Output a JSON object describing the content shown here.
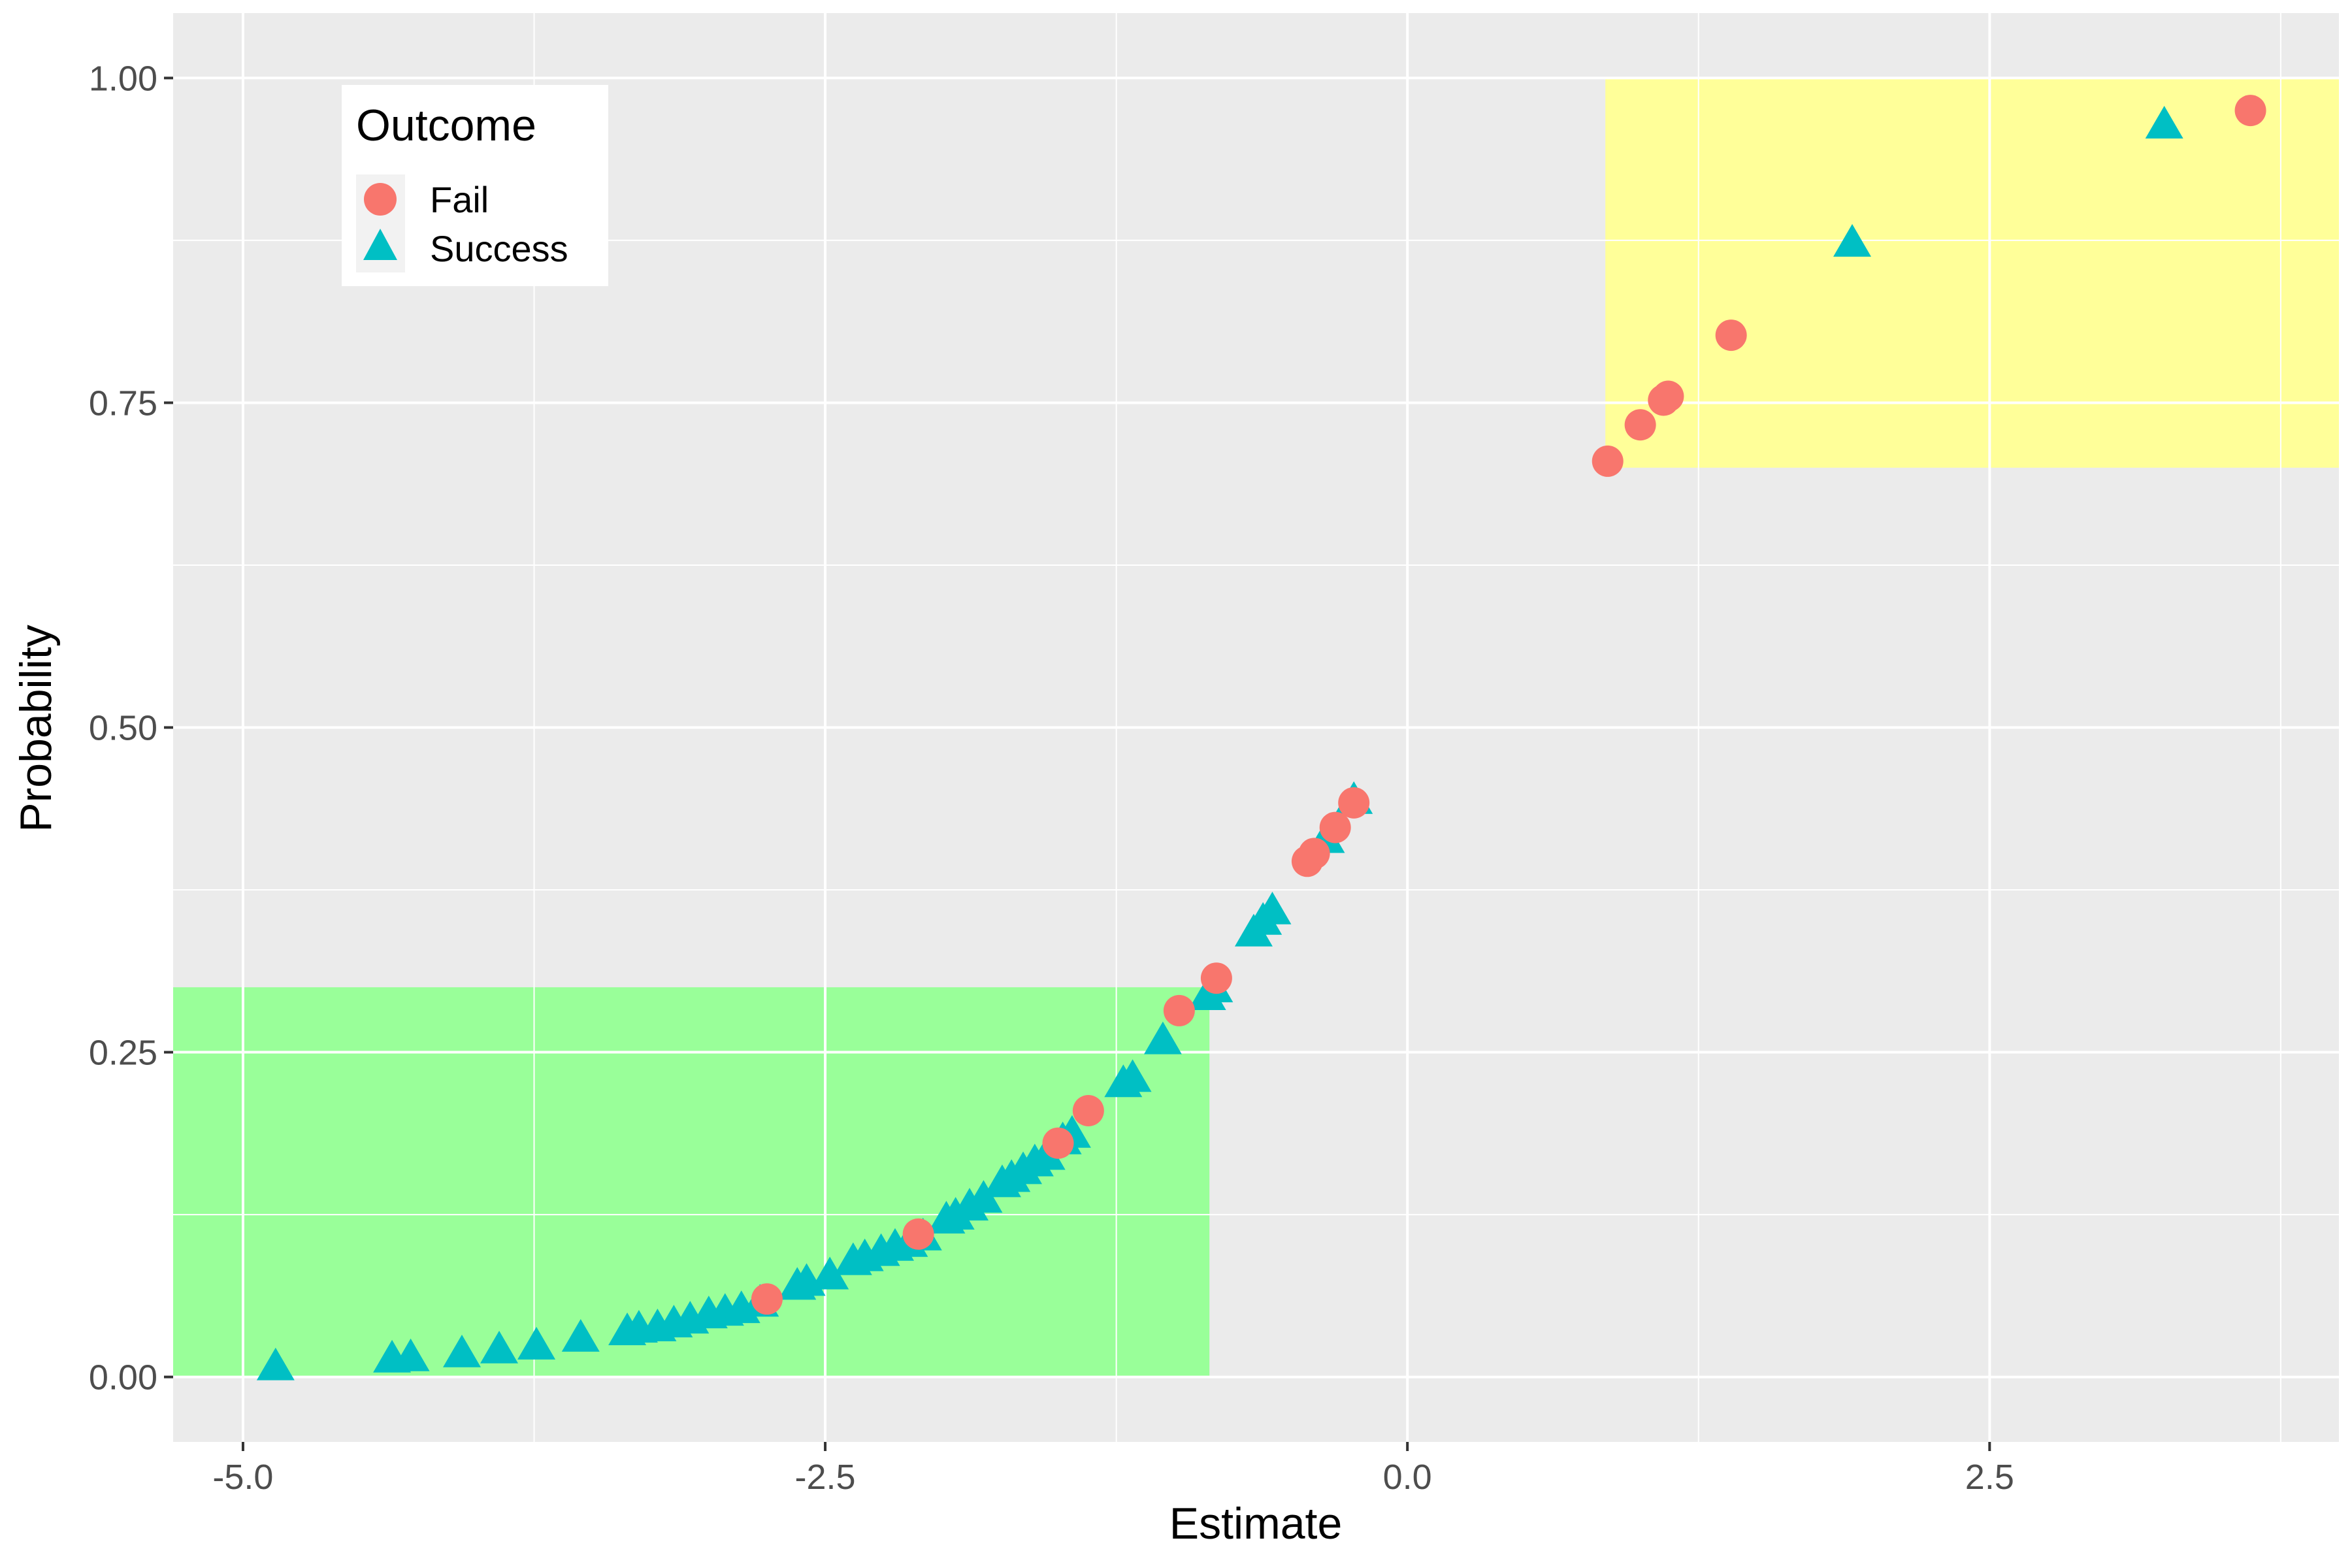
{
  "chart_data": {
    "type": "scatter",
    "xlabel": "Estimate",
    "ylabel": "Probability",
    "xlim": [
      -5.3,
      4.0
    ],
    "ylim": [
      -0.05,
      1.05
    ],
    "x_ticks": [
      -5.0,
      -2.5,
      0.0,
      2.5
    ],
    "x_tick_labels": [
      "-5.0",
      "-2.5",
      "0.0",
      "2.5"
    ],
    "y_ticks": [
      0.0,
      0.25,
      0.5,
      0.75,
      1.0
    ],
    "y_tick_labels": [
      "0.00",
      "0.25",
      "0.50",
      "0.75",
      "1.00"
    ],
    "grid": true,
    "legend": {
      "title": "Outcome",
      "position": "top-left",
      "entries": [
        "Fail",
        "Success"
      ]
    },
    "highlight_regions": [
      {
        "x": [
          -5.3,
          -0.85
        ],
        "y": [
          0.0,
          0.3
        ],
        "color": "#99FF99"
      },
      {
        "x": [
          0.85,
          4.0
        ],
        "y": [
          0.7,
          1.0
        ],
        "color": "#FFFF99"
      }
    ],
    "series": [
      {
        "name": "Fail",
        "marker": "circle",
        "color": "#F8766D",
        "points": [
          [
            -2.75,
            0.06
          ],
          [
            -2.1,
            0.11
          ],
          [
            -1.5,
            0.18
          ],
          [
            -1.37,
            0.205
          ],
          [
            -0.98,
            0.282
          ],
          [
            -0.82,
            0.307
          ],
          [
            -0.43,
            0.397
          ],
          [
            -0.4,
            0.403
          ],
          [
            -0.31,
            0.423
          ],
          [
            -0.23,
            0.442
          ],
          [
            0.86,
            0.705
          ],
          [
            1.0,
            0.733
          ],
          [
            1.1,
            0.752
          ],
          [
            1.12,
            0.755
          ],
          [
            1.39,
            0.802
          ],
          [
            3.62,
            0.975
          ]
        ]
      },
      {
        "name": "Success",
        "marker": "triangle",
        "color": "#00BFC4",
        "points": [
          [
            -4.86,
            0.009
          ],
          [
            -4.36,
            0.015
          ],
          [
            -4.28,
            0.016
          ],
          [
            -4.06,
            0.019
          ],
          [
            -3.9,
            0.022
          ],
          [
            -3.74,
            0.025
          ],
          [
            -3.55,
            0.031
          ],
          [
            -3.35,
            0.036
          ],
          [
            -3.3,
            0.038
          ],
          [
            -3.22,
            0.039
          ],
          [
            -3.15,
            0.042
          ],
          [
            -3.08,
            0.045
          ],
          [
            -3.0,
            0.049
          ],
          [
            -2.93,
            0.051
          ],
          [
            -2.86,
            0.053
          ],
          [
            -2.78,
            0.058
          ],
          [
            -2.62,
            0.071
          ],
          [
            -2.58,
            0.074
          ],
          [
            -2.48,
            0.079
          ],
          [
            -2.38,
            0.09
          ],
          [
            -2.33,
            0.093
          ],
          [
            -2.26,
            0.097
          ],
          [
            -2.2,
            0.101
          ],
          [
            -2.14,
            0.104
          ],
          [
            -2.08,
            0.109
          ],
          [
            -1.98,
            0.122
          ],
          [
            -1.94,
            0.125
          ],
          [
            -1.88,
            0.132
          ],
          [
            -1.82,
            0.138
          ],
          [
            -1.74,
            0.15
          ],
          [
            -1.7,
            0.154
          ],
          [
            -1.65,
            0.16
          ],
          [
            -1.6,
            0.166
          ],
          [
            -1.55,
            0.171
          ],
          [
            -1.48,
            0.183
          ],
          [
            -1.44,
            0.188
          ],
          [
            -1.22,
            0.227
          ],
          [
            -1.18,
            0.231
          ],
          [
            -1.05,
            0.26
          ],
          [
            -0.86,
            0.294
          ],
          [
            -0.83,
            0.3
          ],
          [
            -0.66,
            0.343
          ],
          [
            -0.62,
            0.352
          ],
          [
            -0.58,
            0.36
          ],
          [
            -0.35,
            0.415
          ],
          [
            -0.23,
            0.445
          ],
          [
            1.91,
            0.874
          ],
          [
            3.25,
            0.965
          ]
        ]
      }
    ]
  }
}
